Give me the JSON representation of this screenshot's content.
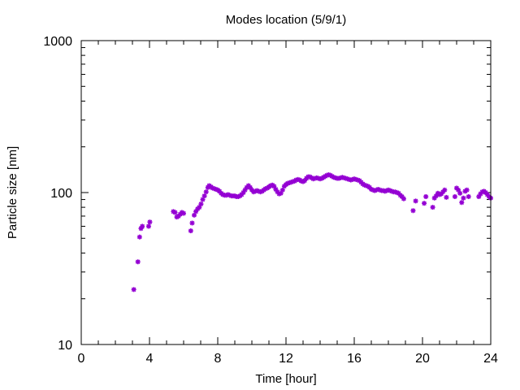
{
  "chart_data": {
    "type": "scatter",
    "title": "Modes location (5/9/1)",
    "xlabel": "Time [hour]",
    "ylabel": "Particle size [nm]",
    "xlim": [
      0,
      24
    ],
    "ylim": [
      10,
      1000
    ],
    "yscale": "log",
    "x_ticks": [
      0,
      4,
      8,
      12,
      16,
      20,
      24
    ],
    "x_tick_labels": [
      "0",
      "4",
      "8",
      "12",
      "16",
      "20",
      "24"
    ],
    "y_ticks": [
      10,
      100,
      1000
    ],
    "y_tick_labels": [
      "10",
      "100",
      "1000"
    ],
    "grid": false,
    "legend": "none",
    "marker_color": "#9400d3",
    "marker": "asterisk",
    "series": [
      {
        "points": [
          [
            3.08,
            23.0
          ],
          [
            3.32,
            35.0
          ],
          [
            3.42,
            51.0
          ],
          [
            3.5,
            58.0
          ],
          [
            3.58,
            60.0
          ],
          [
            3.95,
            60.0
          ],
          [
            4.02,
            64.0
          ],
          [
            5.4,
            75.0
          ],
          [
            5.5,
            74.0
          ],
          [
            5.6,
            69.0
          ],
          [
            5.7,
            70.0
          ],
          [
            5.8,
            72.0
          ],
          [
            5.9,
            74.0
          ],
          [
            6.0,
            73.0
          ],
          [
            6.42,
            56.0
          ],
          [
            6.5,
            63.0
          ],
          [
            6.62,
            71.0
          ],
          [
            6.72,
            75.0
          ],
          [
            6.82,
            78.0
          ],
          [
            6.92,
            80.0
          ],
          [
            7.02,
            84.0
          ],
          [
            7.12,
            90.0
          ],
          [
            7.22,
            95.0
          ],
          [
            7.32,
            101.0
          ],
          [
            7.42,
            108.0
          ],
          [
            7.5,
            111.0
          ],
          [
            7.6,
            109.0
          ],
          [
            7.7,
            107.0
          ],
          [
            7.8,
            106.0
          ],
          [
            7.9,
            105.0
          ],
          [
            8.0,
            104.0
          ],
          [
            8.1,
            102.0
          ],
          [
            8.2,
            99.0
          ],
          [
            8.3,
            97.0
          ],
          [
            8.4,
            96.0
          ],
          [
            8.5,
            96.0
          ],
          [
            8.6,
            97.0
          ],
          [
            8.7,
            96.0
          ],
          [
            8.8,
            95.0
          ],
          [
            8.9,
            95.0
          ],
          [
            9.0,
            95.0
          ],
          [
            9.1,
            94.0
          ],
          [
            9.2,
            94.0
          ],
          [
            9.3,
            95.0
          ],
          [
            9.4,
            97.0
          ],
          [
            9.5,
            100.0
          ],
          [
            9.6,
            104.0
          ],
          [
            9.7,
            108.0
          ],
          [
            9.8,
            111.0
          ],
          [
            9.9,
            108.0
          ],
          [
            10.0,
            104.0
          ],
          [
            10.1,
            101.0
          ],
          [
            10.2,
            102.0
          ],
          [
            10.3,
            103.0
          ],
          [
            10.4,
            102.0
          ],
          [
            10.5,
            101.0
          ],
          [
            10.6,
            102.0
          ],
          [
            10.7,
            104.0
          ],
          [
            10.8,
            106.0
          ],
          [
            10.9,
            107.0
          ],
          [
            11.0,
            109.0
          ],
          [
            11.1,
            111.0
          ],
          [
            11.2,
            112.0
          ],
          [
            11.3,
            110.0
          ],
          [
            11.4,
            105.0
          ],
          [
            11.5,
            101.0
          ],
          [
            11.6,
            98.0
          ],
          [
            11.7,
            99.0
          ],
          [
            11.8,
            104.0
          ],
          [
            11.9,
            110.0
          ],
          [
            12.0,
            113.0
          ],
          [
            12.1,
            115.0
          ],
          [
            12.2,
            116.0
          ],
          [
            12.3,
            117.0
          ],
          [
            12.4,
            118.0
          ],
          [
            12.5,
            119.0
          ],
          [
            12.6,
            121.0
          ],
          [
            12.7,
            122.0
          ],
          [
            12.8,
            121.0
          ],
          [
            12.9,
            119.0
          ],
          [
            13.0,
            118.0
          ],
          [
            13.1,
            120.0
          ],
          [
            13.2,
            124.0
          ],
          [
            13.3,
            127.0
          ],
          [
            13.4,
            127.0
          ],
          [
            13.5,
            125.0
          ],
          [
            13.6,
            123.0
          ],
          [
            13.7,
            124.0
          ],
          [
            13.8,
            125.0
          ],
          [
            13.9,
            124.0
          ],
          [
            14.0,
            123.0
          ],
          [
            14.1,
            124.0
          ],
          [
            14.2,
            126.0
          ],
          [
            14.3,
            128.0
          ],
          [
            14.4,
            130.0
          ],
          [
            14.5,
            131.0
          ],
          [
            14.6,
            130.0
          ],
          [
            14.7,
            128.0
          ],
          [
            14.8,
            126.0
          ],
          [
            14.9,
            125.0
          ],
          [
            15.0,
            124.0
          ],
          [
            15.1,
            124.0
          ],
          [
            15.2,
            125.0
          ],
          [
            15.3,
            126.0
          ],
          [
            15.4,
            125.0
          ],
          [
            15.5,
            124.0
          ],
          [
            15.6,
            123.0
          ],
          [
            15.7,
            122.0
          ],
          [
            15.8,
            121.0
          ],
          [
            15.9,
            122.0
          ],
          [
            16.0,
            123.0
          ],
          [
            16.1,
            122.0
          ],
          [
            16.2,
            121.0
          ],
          [
            16.3,
            120.0
          ],
          [
            16.4,
            117.0
          ],
          [
            16.5,
            114.0
          ],
          [
            16.6,
            112.0
          ],
          [
            16.7,
            111.0
          ],
          [
            16.8,
            110.0
          ],
          [
            16.9,
            108.0
          ],
          [
            17.0,
            105.0
          ],
          [
            17.1,
            104.0
          ],
          [
            17.2,
            103.0
          ],
          [
            17.3,
            104.0
          ],
          [
            17.4,
            105.0
          ],
          [
            17.5,
            104.0
          ],
          [
            17.6,
            103.0
          ],
          [
            17.7,
            103.0
          ],
          [
            17.8,
            102.0
          ],
          [
            17.9,
            103.0
          ],
          [
            18.0,
            104.0
          ],
          [
            18.1,
            103.0
          ],
          [
            18.2,
            102.0
          ],
          [
            18.3,
            101.0
          ],
          [
            18.4,
            101.0
          ],
          [
            18.5,
            100.0
          ],
          [
            18.6,
            99.0
          ],
          [
            18.7,
            96.0
          ],
          [
            18.8,
            94.0
          ],
          [
            18.9,
            91.0
          ],
          [
            19.45,
            76.0
          ],
          [
            19.6,
            88.0
          ],
          [
            20.1,
            85.0
          ],
          [
            20.2,
            94.0
          ],
          [
            20.6,
            80.0
          ],
          [
            20.7,
            92.0
          ],
          [
            20.8,
            95.0
          ],
          [
            20.9,
            99.0
          ],
          [
            21.0,
            97.0
          ],
          [
            21.1,
            98.0
          ],
          [
            21.2,
            101.0
          ],
          [
            21.3,
            104.0
          ],
          [
            21.4,
            93.0
          ],
          [
            21.9,
            94.0
          ],
          [
            22.0,
            107.0
          ],
          [
            22.1,
            104.0
          ],
          [
            22.2,
            99.0
          ],
          [
            22.3,
            86.0
          ],
          [
            22.4,
            92.0
          ],
          [
            22.5,
            102.0
          ],
          [
            22.6,
            104.0
          ],
          [
            22.7,
            94.0
          ],
          [
            23.3,
            94.0
          ],
          [
            23.4,
            98.0
          ],
          [
            23.5,
            101.0
          ],
          [
            23.6,
            102.0
          ],
          [
            23.7,
            100.0
          ],
          [
            23.8,
            97.0
          ],
          [
            23.9,
            94.0
          ],
          [
            24.0,
            92.0
          ]
        ]
      }
    ]
  }
}
